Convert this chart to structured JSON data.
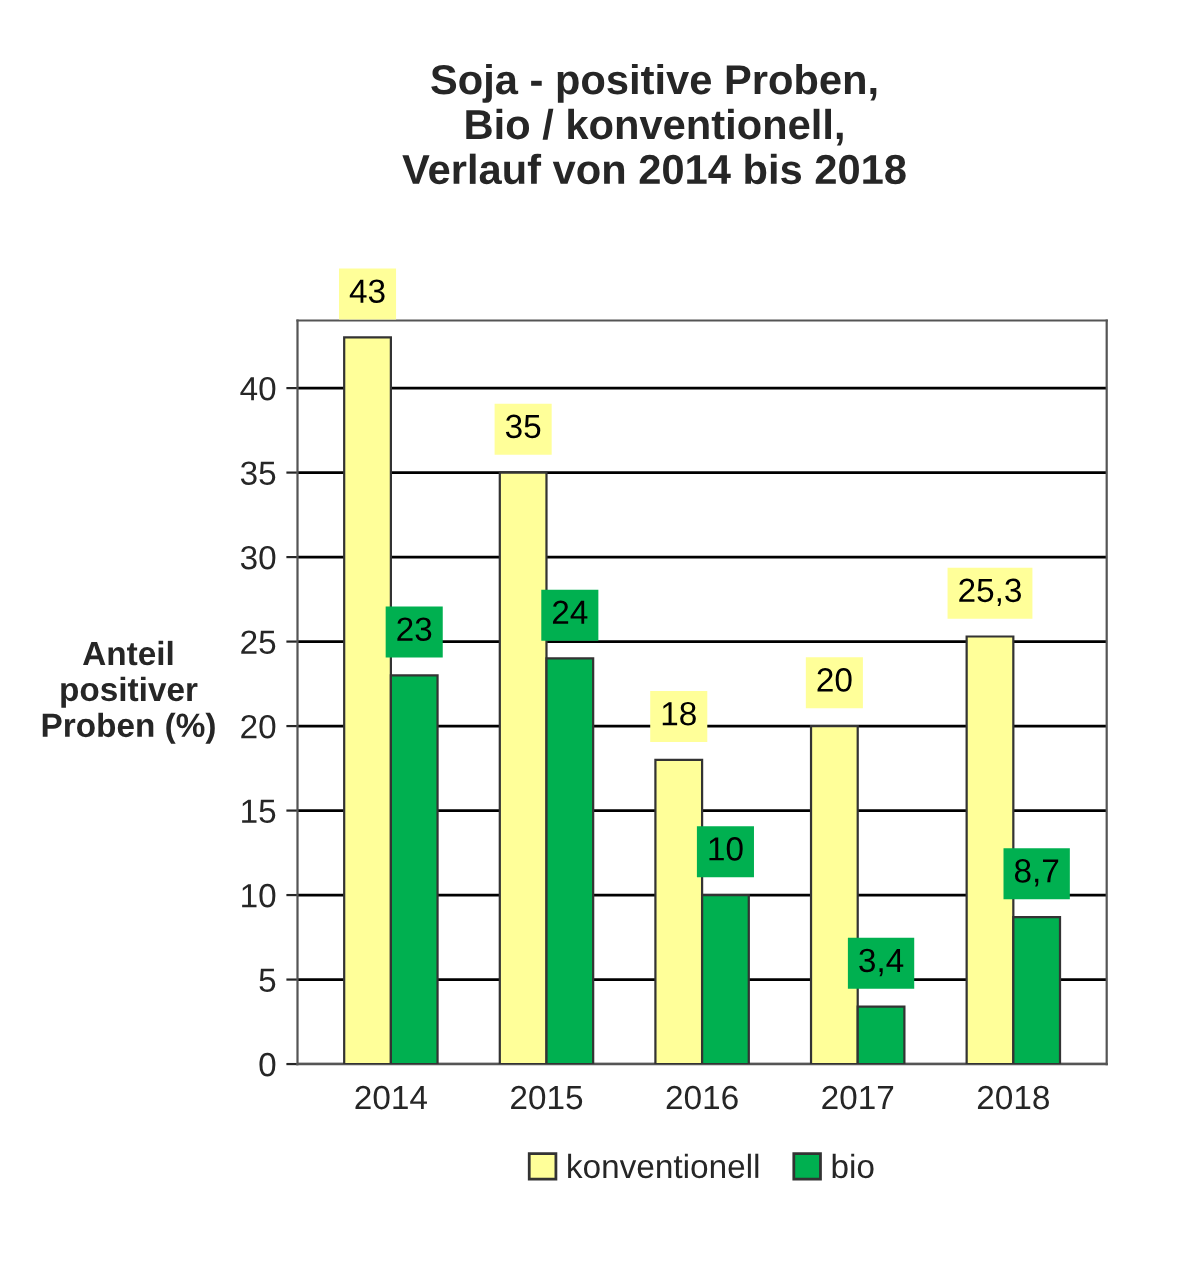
{
  "chart_data": {
    "type": "bar",
    "title": "Soja - positive Proben,\nBio / konventionell,\nVerlauf von 2014 bis 2018",
    "ylabel": "Anteil\npositiver\nProben (%)",
    "categories": [
      "2014",
      "2015",
      "2016",
      "2017",
      "2018"
    ],
    "series": [
      {
        "name": "konventionell",
        "color": "#ffff99",
        "values": [
          43,
          35,
          18,
          20,
          25.3
        ],
        "value_labels": [
          "43",
          "35",
          "18",
          "20",
          "25,3"
        ]
      },
      {
        "name": "bio",
        "color": "#00b050",
        "values": [
          23,
          24,
          10,
          3.4,
          8.7
        ],
        "value_labels": [
          "23",
          "24",
          "10",
          "3,4",
          "8,7"
        ]
      }
    ],
    "ylim": [
      0,
      44
    ],
    "yticks": [
      0,
      5,
      10,
      15,
      20,
      25,
      30,
      35,
      40
    ],
    "grid": "y",
    "legend": "bottom"
  }
}
